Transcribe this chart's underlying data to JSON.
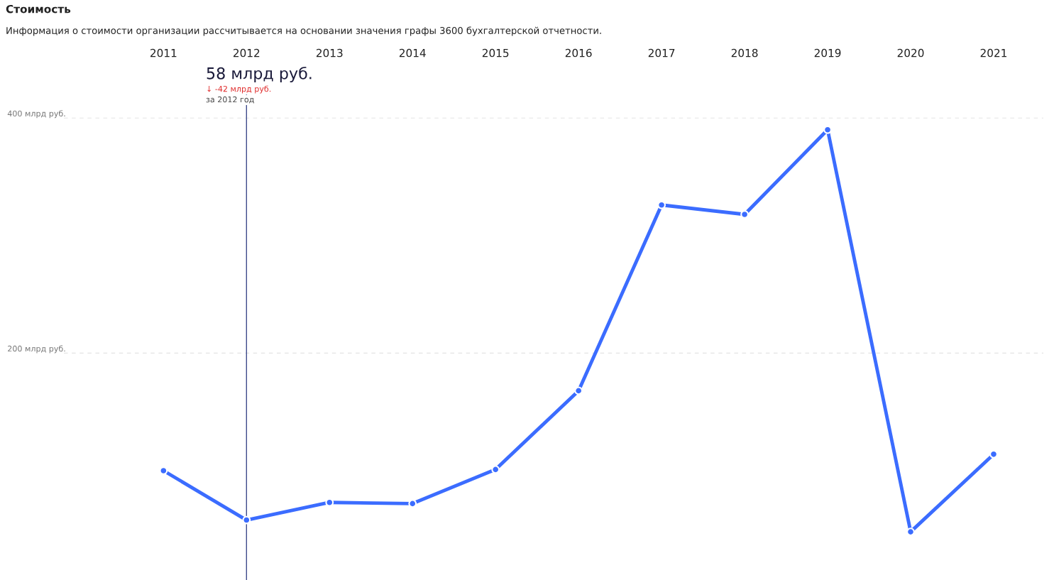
{
  "chart_data": {
    "type": "line",
    "title": "Стоимость",
    "subtitle": "Информация о стоимости организации рассчитывается на основании значения графы 3600 бухгалтерской отчетности.",
    "x": [
      2011,
      2012,
      2013,
      2014,
      2015,
      2016,
      2017,
      2018,
      2019,
      2020,
      2021
    ],
    "series": [
      {
        "color": "#3b6cff",
        "values": [
          100,
          58,
          73,
          72,
          101,
          168,
          326,
          318,
          390,
          48,
          114
        ]
      }
    ],
    "xlim": [
      2009.8,
      2021.6
    ],
    "xticks": [
      2011,
      2012,
      2013,
      2014,
      2015,
      2016,
      2017,
      2018,
      2019,
      2020,
      2021
    ],
    "ylim": [
      7,
      440
    ],
    "yticks": [
      {
        "value": 200,
        "label": "200 млрд руб."
      },
      {
        "value": 400,
        "label": "400 млрд руб."
      }
    ],
    "grid": "y",
    "marker": "circle",
    "line_style": "solid",
    "ref_lines": [
      {
        "axis": "x",
        "value": 2012,
        "color": "#3d4a8a"
      }
    ],
    "annotations": [
      "58 млрд руб.",
      "↓ -42 млрд руб.",
      "за 2012 год"
    ]
  }
}
